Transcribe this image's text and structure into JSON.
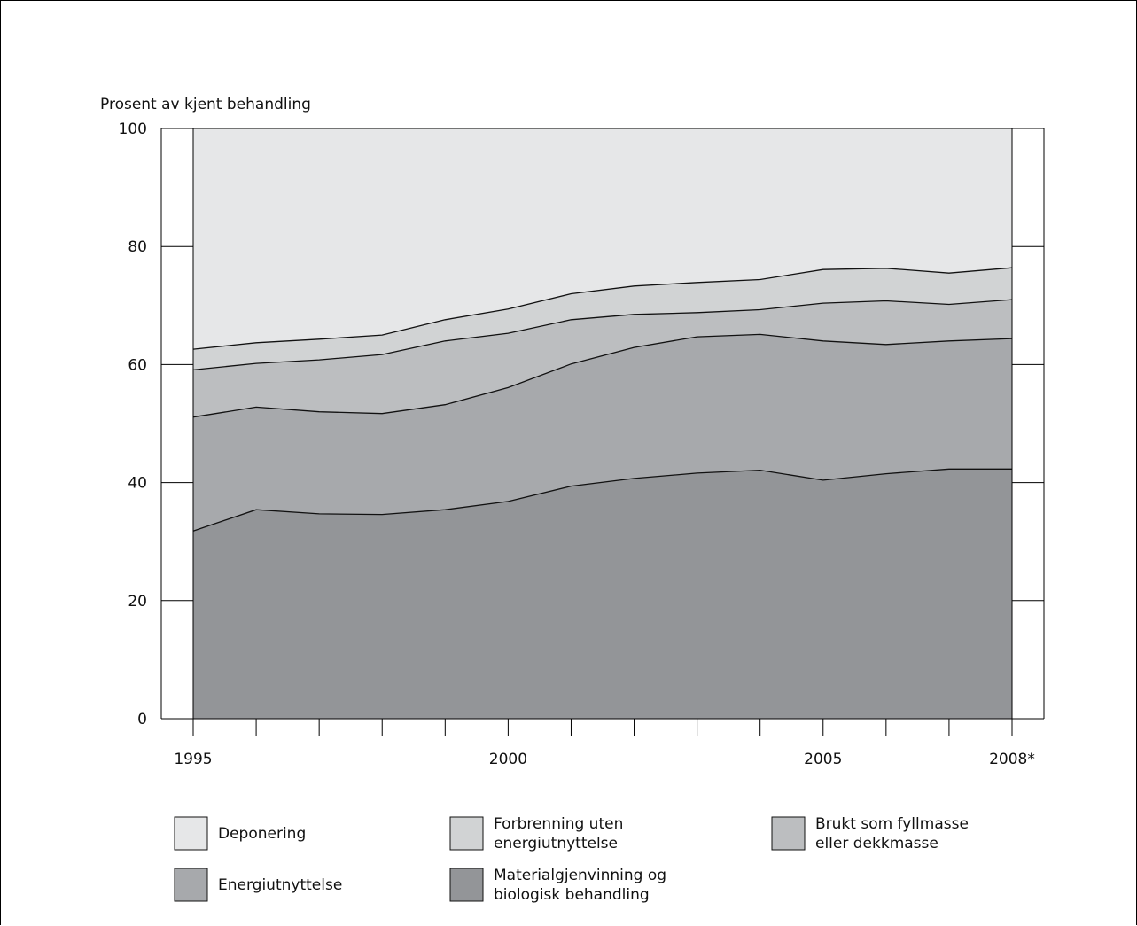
{
  "chart_data": {
    "type": "area",
    "stacked": true,
    "ylabel": "Prosent av kjent behandling",
    "ylim": [
      0,
      100
    ],
    "yticks": [
      "0",
      "20",
      "40",
      "60",
      "80",
      "100"
    ],
    "x": [
      "1995",
      "1996",
      "1997",
      "1998",
      "1999",
      "2000",
      "2001",
      "2002",
      "2003",
      "2004",
      "2005",
      "2006",
      "2007",
      "2008*"
    ],
    "x_labels_shown": {
      "1995": "1995",
      "2000": "2000",
      "2005": "2005",
      "2008*": "2008*"
    },
    "series": [
      {
        "name": "Materialgjenvinning og biologisk behandling",
        "color": "#939598",
        "values": [
          31.8,
          35.4,
          34.7,
          34.6,
          35.4,
          36.8,
          39.4,
          40.7,
          41.6,
          42.1,
          40.4,
          41.5,
          42.3,
          42.3
        ]
      },
      {
        "name": "Energiutnyttelse",
        "color": "#a7a9ac",
        "values": [
          19.3,
          17.4,
          17.3,
          17.1,
          17.8,
          19.3,
          20.7,
          22.2,
          23.1,
          23.0,
          23.6,
          21.9,
          21.7,
          22.1
        ]
      },
      {
        "name": "Brukt som fyllmasse eller dekkmasse",
        "color": "#bcbec0",
        "values": [
          8.0,
          7.4,
          8.8,
          10.0,
          10.8,
          9.2,
          7.5,
          5.6,
          4.1,
          4.2,
          6.4,
          7.4,
          6.2,
          6.6
        ]
      },
      {
        "name": "Forbrenning uten energiutnyttelse",
        "color": "#d1d3d4",
        "values": [
          3.5,
          3.5,
          3.5,
          3.3,
          3.6,
          4.1,
          4.4,
          4.8,
          5.1,
          5.1,
          5.7,
          5.5,
          5.3,
          5.4
        ]
      },
      {
        "name": "Deponering",
        "color": "#e6e7e8",
        "values": [
          37.4,
          36.3,
          35.7,
          35.0,
          32.4,
          30.6,
          28.0,
          26.7,
          26.1,
          25.6,
          23.9,
          23.7,
          24.5,
          23.6
        ]
      }
    ],
    "legend": {
      "placement": "bottom",
      "items": [
        {
          "lines": [
            "Deponering"
          ],
          "color": "#e6e7e8"
        },
        {
          "lines": [
            "Forbrenning uten",
            "energiutnyttelse"
          ],
          "color": "#d1d3d4"
        },
        {
          "lines": [
            "Brukt som fyllmasse",
            "eller dekkmasse"
          ],
          "color": "#bcbec0"
        },
        {
          "lines": [
            "Energiutnyttelse"
          ],
          "color": "#a7a9ac"
        },
        {
          "lines": [
            "Materialgjenvinning og",
            "biologisk behandling"
          ],
          "color": "#939598"
        }
      ]
    }
  }
}
